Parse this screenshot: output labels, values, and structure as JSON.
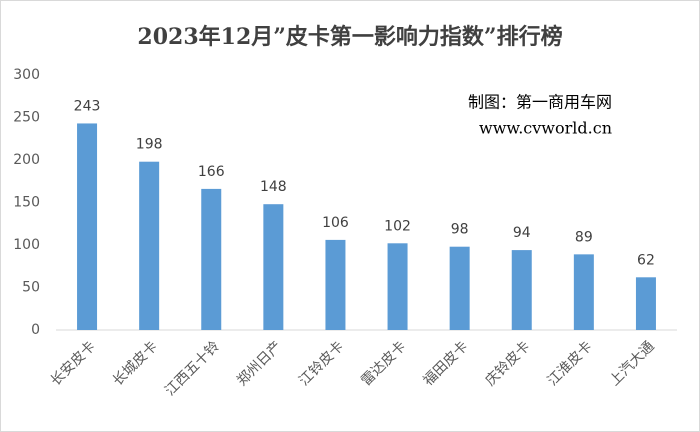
{
  "chart_data": {
    "type": "bar",
    "title": "2023年12月”皮卡第一影响力指数”排行榜",
    "annotations": [
      "制图：第一商用车网",
      "www.cvworld.cn"
    ],
    "categories": [
      "长安皮卡",
      "长城皮卡",
      "江西五十铃",
      "郑州日产",
      "江铃皮卡",
      "雷达皮卡",
      "福田皮卡",
      "庆铃皮卡",
      "江淮皮卡",
      "上汽大通"
    ],
    "values": [
      243,
      198,
      166,
      148,
      106,
      102,
      98,
      94,
      89,
      62
    ],
    "color": "#5b9bd5",
    "ylim": [
      0,
      300
    ],
    "yticks": [
      0,
      50,
      100,
      150,
      200,
      250,
      300
    ],
    "grid": false
  }
}
